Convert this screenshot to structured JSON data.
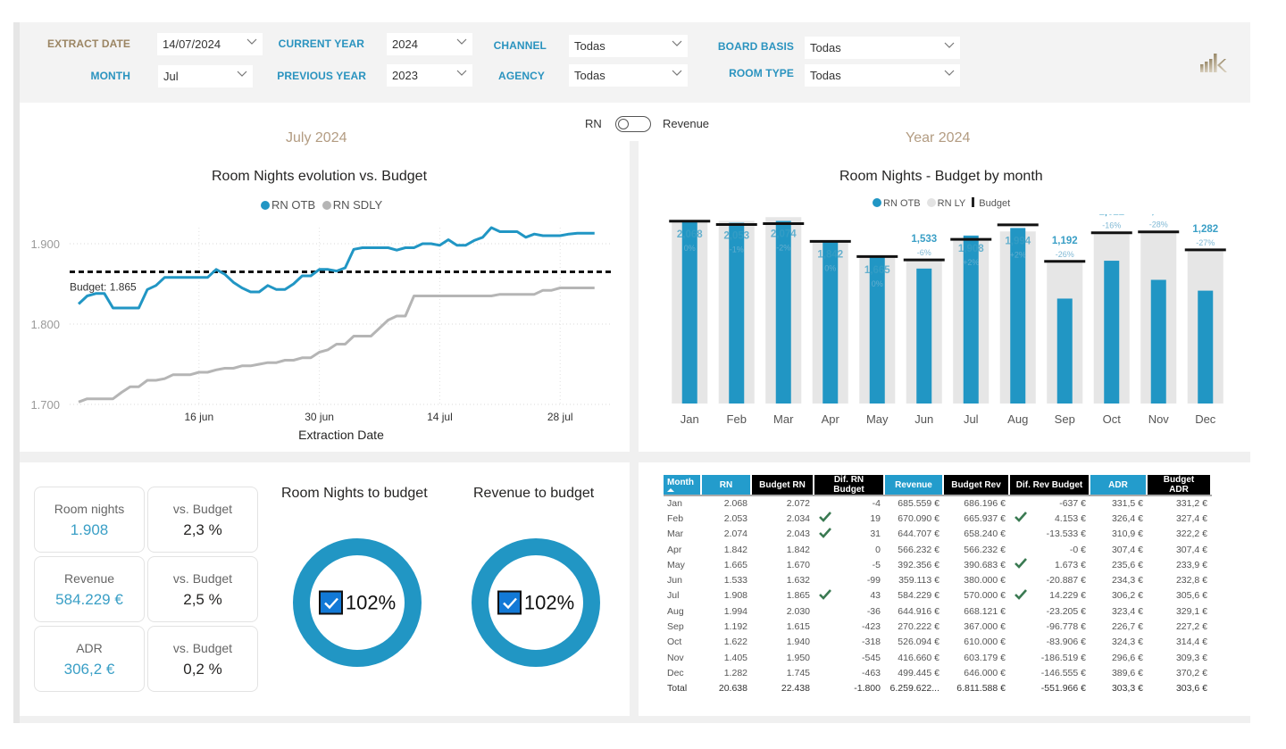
{
  "filters": {
    "extract_date": {
      "label": "EXTRACT DATE",
      "value": "14/07/2024"
    },
    "month": {
      "label": "MONTH",
      "value": "Jul"
    },
    "current_year": {
      "label": "CURRENT YEAR",
      "value": "2024"
    },
    "previous_year": {
      "label": "PREVIOUS YEAR",
      "value": "2023"
    },
    "channel": {
      "label": "CHANNEL",
      "value": "Todas"
    },
    "agency": {
      "label": "AGENCY",
      "value": "Todas"
    },
    "board_basis": {
      "label": "BOARD BASIS",
      "value": "Todas"
    },
    "room_type": {
      "label": "ROOM TYPE",
      "value": "Todas"
    }
  },
  "logo_icon": "bar-chart-k-logo",
  "toggle": {
    "left_label": "RN",
    "right_label": "Revenue",
    "state": "RN"
  },
  "left_section_title": "July 2024",
  "right_section_title": "Year 2024",
  "colors": {
    "accent_blue": "#2196c4",
    "ly_gray": "#e3e3e3",
    "sdly_gray": "#b5b5b5",
    "budget_black": "#000000",
    "gold": "#b39c82",
    "check_green": "#3a7a52"
  },
  "chart_data": [
    {
      "type": "line",
      "title": "Room Nights evolution vs. Budget",
      "xlabel": "Extraction Date",
      "ylabel": "",
      "x_ticks": [
        "16 jun",
        "30 jun",
        "14 jul",
        "28 jul"
      ],
      "y_ticks": [
        "1.700",
        "1.800",
        "1.900"
      ],
      "ylim": [
        1700,
        1920
      ],
      "x_range_days": [
        0,
        62
      ],
      "x_tick_days": [
        14,
        28,
        42,
        56
      ],
      "legend": [
        "RN OTB",
        "RN SDLY"
      ],
      "legend_position": "top-center",
      "grid": true,
      "budget_line": {
        "label": "Budget: 1.865",
        "value": 1865
      },
      "series": [
        {
          "name": "RN OTB",
          "x_days": [
            0,
            1,
            2,
            3,
            4,
            5,
            6,
            7,
            8,
            9,
            10,
            11,
            12,
            13,
            14,
            15,
            16,
            17,
            18,
            19,
            20,
            21,
            22,
            23,
            24,
            25,
            26,
            27,
            28,
            29,
            30,
            31,
            32,
            33,
            34,
            35,
            36,
            37,
            38,
            39,
            40,
            41,
            42,
            43,
            44,
            45,
            46,
            47,
            48,
            49,
            50,
            51,
            52,
            53,
            54,
            55,
            56,
            57,
            58,
            59,
            60
          ],
          "values": [
            1825,
            1835,
            1838,
            1838,
            1820,
            1820,
            1820,
            1820,
            1843,
            1848,
            1858,
            1858,
            1858,
            1858,
            1858,
            1858,
            1868,
            1862,
            1852,
            1845,
            1840,
            1840,
            1848,
            1843,
            1843,
            1850,
            1860,
            1860,
            1868,
            1868,
            1866,
            1870,
            1893,
            1895,
            1895,
            1895,
            1895,
            1892,
            1895,
            1895,
            1900,
            1900,
            1898,
            1905,
            1898,
            1898,
            1904,
            1908,
            1920,
            1915,
            1915,
            1915,
            1908,
            1912,
            1910,
            1910,
            1910,
            1912,
            1913,
            1913,
            1913
          ]
        },
        {
          "name": "RN SDLY",
          "x_days": [
            0,
            1,
            2,
            3,
            4,
            5,
            6,
            7,
            8,
            9,
            10,
            11,
            12,
            13,
            14,
            15,
            16,
            17,
            18,
            19,
            20,
            21,
            22,
            23,
            24,
            25,
            26,
            27,
            28,
            29,
            30,
            31,
            32,
            33,
            34,
            35,
            36,
            37,
            38,
            39,
            40,
            41,
            42,
            43,
            44,
            45,
            46,
            47,
            48,
            49,
            50,
            51,
            52,
            53,
            54,
            55,
            56,
            57,
            58,
            59,
            60
          ],
          "values": [
            1703,
            1707,
            1707,
            1707,
            1707,
            1715,
            1722,
            1722,
            1730,
            1730,
            1732,
            1737,
            1737,
            1737,
            1740,
            1740,
            1743,
            1745,
            1745,
            1748,
            1748,
            1750,
            1752,
            1752,
            1755,
            1755,
            1758,
            1758,
            1765,
            1768,
            1775,
            1775,
            1785,
            1785,
            1785,
            1795,
            1805,
            1810,
            1810,
            1835,
            1835,
            1835,
            1835,
            1835,
            1835,
            1835,
            1835,
            1835,
            1835,
            1837,
            1837,
            1837,
            1837,
            1837,
            1842,
            1842,
            1845,
            1845,
            1845,
            1845,
            1845
          ]
        }
      ]
    },
    {
      "type": "bar",
      "title": "Room Nights - Budget by month",
      "categories": [
        "Jan",
        "Feb",
        "Mar",
        "Apr",
        "May",
        "Jun",
        "Jul",
        "Aug",
        "Sep",
        "Oct",
        "Nov",
        "Dec"
      ],
      "legend": [
        "RN OTB",
        "RN LY",
        "Budget"
      ],
      "legend_position": "top-center",
      "ylim": [
        0,
        2150
      ],
      "grid": false,
      "series": [
        {
          "name": "RN OTB",
          "values": [
            2068,
            2053,
            2074,
            1842,
            1665,
            1533,
            1908,
            1994,
            1192,
            1622,
            1405,
            1282
          ]
        },
        {
          "name": "RN LY",
          "values": [
            2068,
            2074,
            2117,
            1842,
            1665,
            1632,
            1870,
            1955,
            1612,
            1930,
            1950,
            1760
          ]
        },
        {
          "name": "Budget",
          "values": [
            2072,
            2034,
            2043,
            1842,
            1670,
            1632,
            1865,
            2030,
            1615,
            1940,
            1950,
            1745
          ]
        }
      ],
      "data_labels": [
        "2,068",
        "2,053",
        "2,074",
        "1,842",
        "1,665",
        "1,533",
        "1,908",
        "1,994",
        "1,192",
        "1,622",
        "1,405",
        "1,282"
      ],
      "variance_labels": [
        "0%",
        "-1%",
        "-2%",
        "0%",
        "0%",
        "-6%",
        "+2%",
        "+2%",
        "-26%",
        "-16%",
        "-28%",
        "-27%"
      ]
    }
  ],
  "kpis": [
    {
      "label": "Room nights",
      "value": "1.908",
      "vs_label": "vs. Budget",
      "vs_value": "2,3 %"
    },
    {
      "label": "Revenue",
      "value": "584.229 €",
      "vs_label": "vs. Budget",
      "vs_value": "2,5 %"
    },
    {
      "label": "ADR",
      "value": "306,2 €",
      "vs_label": "vs. Budget",
      "vs_value": "0,2 %"
    }
  ],
  "gauges": [
    {
      "title": "Room Nights to budget",
      "value": "102%",
      "icon": "checked-checkbox-icon"
    },
    {
      "title": "Revenue to budget",
      "value": "102%",
      "icon": "checked-checkbox-icon"
    }
  ],
  "table": {
    "headers": [
      "Month",
      "RN",
      "Budget RN",
      "Dif. RN Budget",
      "Revenue",
      "Budget Rev",
      "Dif. Rev Budget",
      "ADR",
      "Budget ADR"
    ],
    "rows": [
      {
        "month": "Jan",
        "rn": "2.068",
        "budget_rn": "2.072",
        "rn_check": false,
        "dif_rn": "-4",
        "revenue": "685.559 €",
        "budget_rev": "686.196 €",
        "rev_check": false,
        "dif_rev": "-637 €",
        "adr": "331,5 €",
        "budget_adr": "331,2 €"
      },
      {
        "month": "Feb",
        "rn": "2.053",
        "budget_rn": "2.034",
        "rn_check": true,
        "dif_rn": "19",
        "revenue": "670.090 €",
        "budget_rev": "665.937 €",
        "rev_check": true,
        "dif_rev": "4.153 €",
        "adr": "326,4 €",
        "budget_adr": "327,4 €"
      },
      {
        "month": "Mar",
        "rn": "2.074",
        "budget_rn": "2.043",
        "rn_check": true,
        "dif_rn": "31",
        "revenue": "644.707 €",
        "budget_rev": "658.240 €",
        "rev_check": false,
        "dif_rev": "-13.533 €",
        "adr": "310,9 €",
        "budget_adr": "322,2 €"
      },
      {
        "month": "Apr",
        "rn": "1.842",
        "budget_rn": "1.842",
        "rn_check": false,
        "dif_rn": "0",
        "revenue": "566.232 €",
        "budget_rev": "566.232 €",
        "rev_check": false,
        "dif_rev": "-0 €",
        "adr": "307,4 €",
        "budget_adr": "307,4 €"
      },
      {
        "month": "May",
        "rn": "1.665",
        "budget_rn": "1.670",
        "rn_check": false,
        "dif_rn": "-5",
        "revenue": "392.356 €",
        "budget_rev": "390.683 €",
        "rev_check": true,
        "dif_rev": "1.673 €",
        "adr": "235,6 €",
        "budget_adr": "233,9 €"
      },
      {
        "month": "Jun",
        "rn": "1.533",
        "budget_rn": "1.632",
        "rn_check": false,
        "dif_rn": "-99",
        "revenue": "359.113 €",
        "budget_rev": "380.000 €",
        "rev_check": false,
        "dif_rev": "-20.887 €",
        "adr": "234,3 €",
        "budget_adr": "232,8 €"
      },
      {
        "month": "Jul",
        "rn": "1.908",
        "budget_rn": "1.865",
        "rn_check": true,
        "dif_rn": "43",
        "revenue": "584.229 €",
        "budget_rev": "570.000 €",
        "rev_check": true,
        "dif_rev": "14.229 €",
        "adr": "306,2 €",
        "budget_adr": "305,6 €"
      },
      {
        "month": "Aug",
        "rn": "1.994",
        "budget_rn": "2.030",
        "rn_check": false,
        "dif_rn": "-36",
        "revenue": "644.916 €",
        "budget_rev": "668.121 €",
        "rev_check": false,
        "dif_rev": "-23.205 €",
        "adr": "323,4 €",
        "budget_adr": "329,1 €"
      },
      {
        "month": "Sep",
        "rn": "1.192",
        "budget_rn": "1.615",
        "rn_check": false,
        "dif_rn": "-423",
        "revenue": "270.222 €",
        "budget_rev": "367.000 €",
        "rev_check": false,
        "dif_rev": "-96.778 €",
        "adr": "226,7 €",
        "budget_adr": "227,2 €"
      },
      {
        "month": "Oct",
        "rn": "1.622",
        "budget_rn": "1.940",
        "rn_check": false,
        "dif_rn": "-318",
        "revenue": "526.094 €",
        "budget_rev": "610.000 €",
        "rev_check": false,
        "dif_rev": "-83.906 €",
        "adr": "324,3 €",
        "budget_adr": "314,4 €"
      },
      {
        "month": "Nov",
        "rn": "1.405",
        "budget_rn": "1.950",
        "rn_check": false,
        "dif_rn": "-545",
        "revenue": "416.660 €",
        "budget_rev": "603.179 €",
        "rev_check": false,
        "dif_rev": "-186.519 €",
        "adr": "296,6 €",
        "budget_adr": "309,3 €"
      },
      {
        "month": "Dec",
        "rn": "1.282",
        "budget_rn": "1.745",
        "rn_check": false,
        "dif_rn": "-463",
        "revenue": "499.445 €",
        "budget_rev": "646.000 €",
        "rev_check": false,
        "dif_rev": "-146.555 €",
        "adr": "389,6 €",
        "budget_adr": "370,2 €"
      }
    ],
    "total": {
      "month": "Total",
      "rn": "20.638",
      "budget_rn": "22.438",
      "dif_rn": "-1.800",
      "revenue": "6.259.622...",
      "budget_rev": "6.811.588 €",
      "dif_rev": "-551.966 €",
      "adr": "303,3 €",
      "budget_adr": "303,6 €"
    }
  }
}
